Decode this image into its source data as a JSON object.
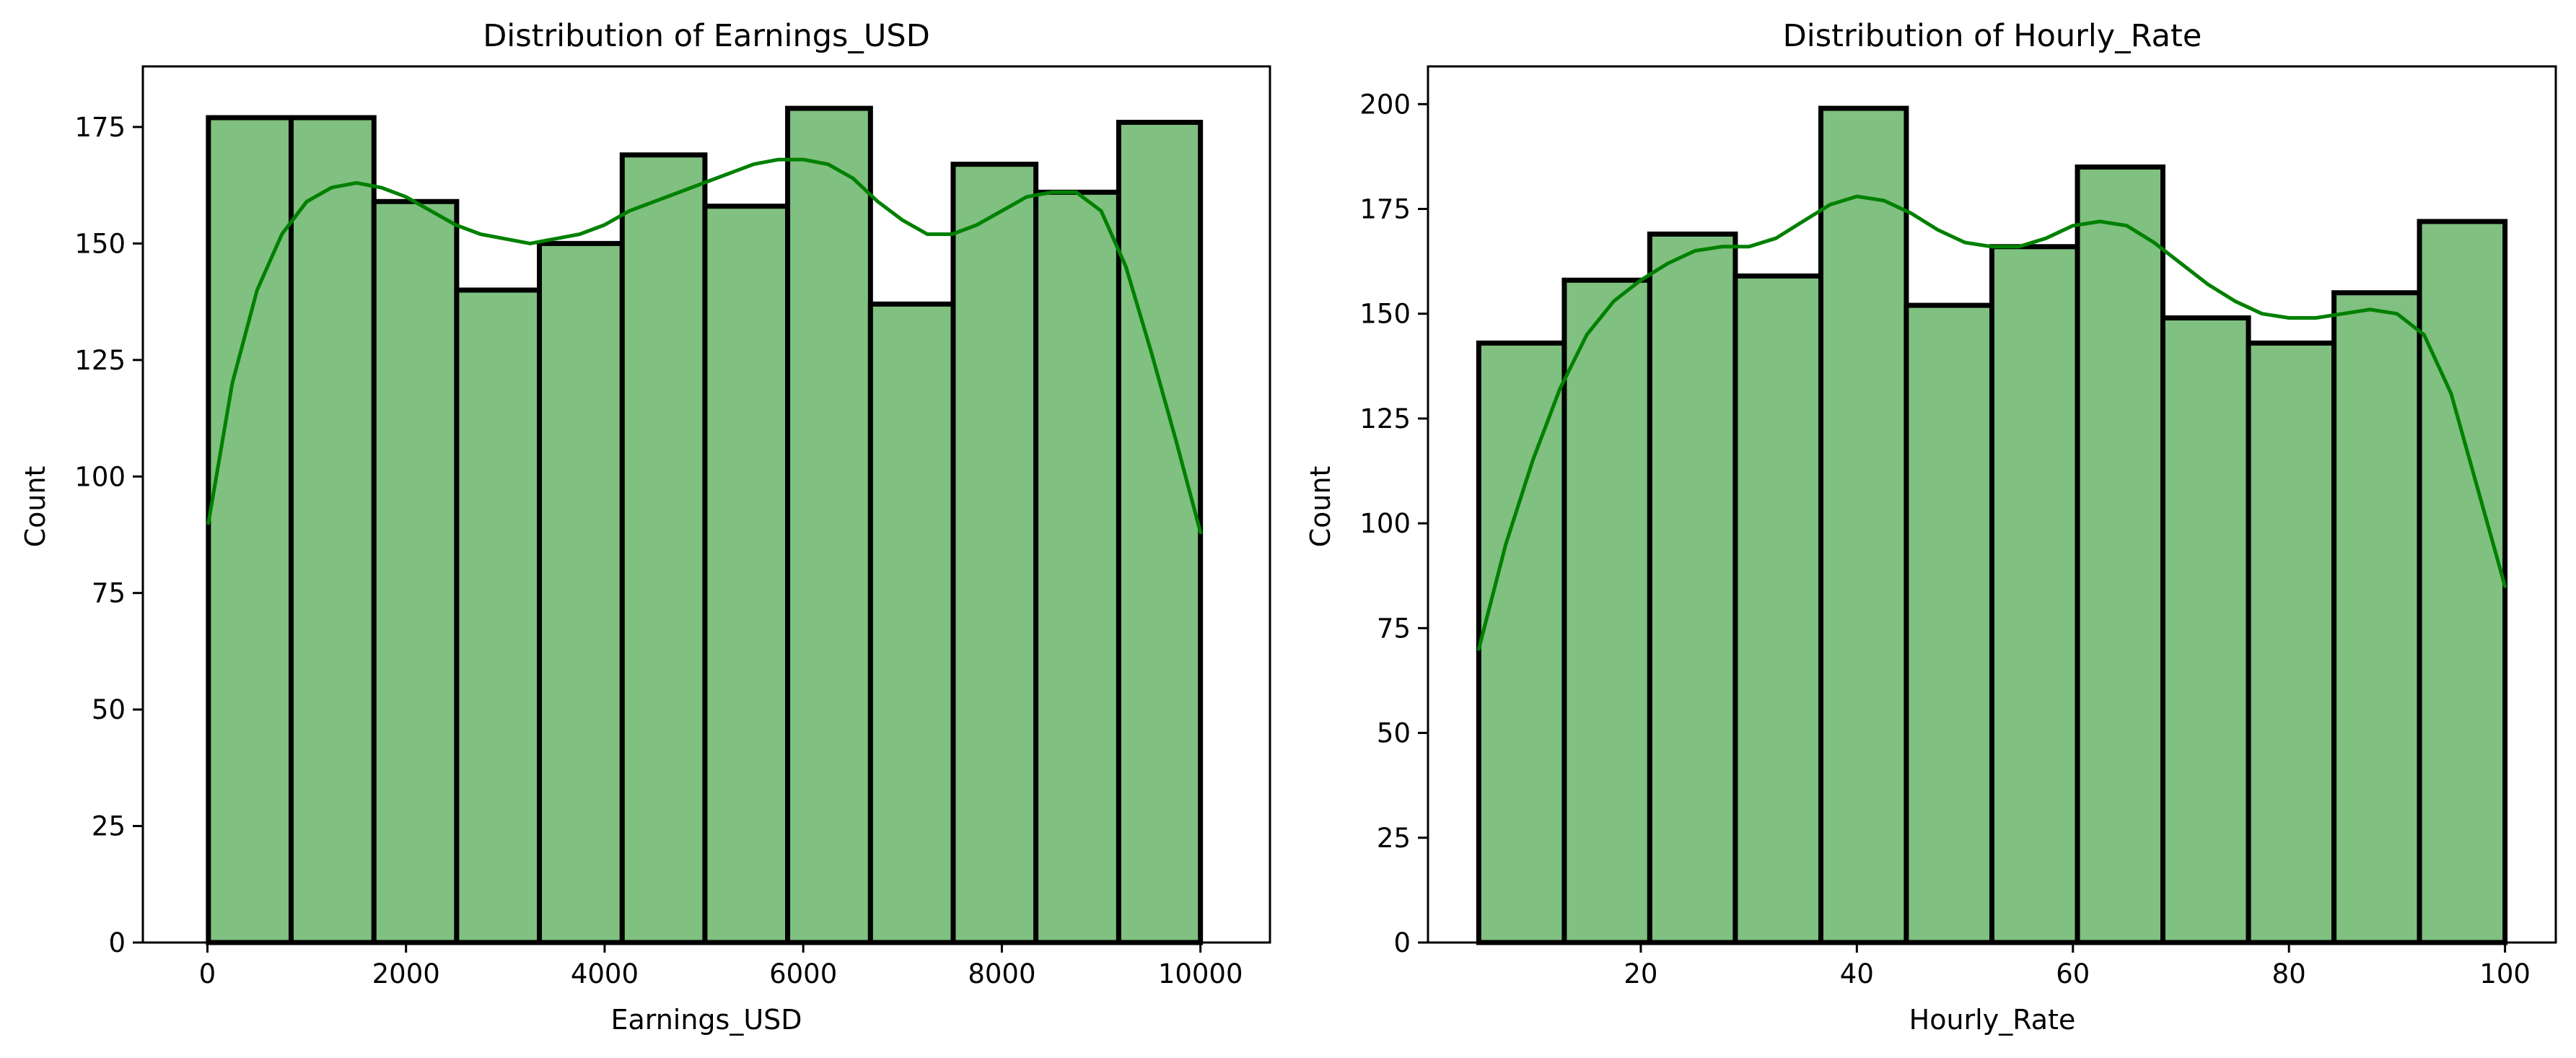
{
  "chart_data": [
    {
      "type": "bar",
      "title": "Distribution of Earnings_USD",
      "xlabel": "Earnings_USD",
      "ylabel": "Count",
      "xlim": [
        -650,
        10700
      ],
      "ylim": [
        0,
        188
      ],
      "xticks": [
        0,
        2000,
        4000,
        6000,
        8000,
        10000
      ],
      "yticks": [
        0,
        25,
        50,
        75,
        100,
        125,
        150,
        175
      ],
      "bin_edges": [
        10,
        843,
        1677,
        2510,
        3343,
        4177,
        5010,
        5843,
        6677,
        7510,
        8343,
        9177,
        10000
      ],
      "values": [
        177,
        177,
        159,
        140,
        150,
        169,
        158,
        179,
        137,
        167,
        161,
        176
      ],
      "kde": {
        "x": [
          10,
          250,
          500,
          750,
          1000,
          1250,
          1500,
          1750,
          2000,
          2250,
          2500,
          2750,
          3000,
          3250,
          3500,
          3750,
          4000,
          4250,
          4500,
          4750,
          5000,
          5250,
          5500,
          5750,
          6000,
          6250,
          6500,
          6750,
          7000,
          7250,
          7500,
          7750,
          8000,
          8250,
          8500,
          8750,
          9000,
          9250,
          9500,
          9750,
          10000
        ],
        "y": [
          90,
          120,
          140,
          152,
          159,
          162,
          163,
          162,
          160,
          157,
          154,
          152,
          151,
          150,
          151,
          152,
          154,
          157,
          159,
          161,
          163,
          165,
          167,
          168,
          168,
          167,
          164,
          159,
          155,
          152,
          152,
          154,
          157,
          160,
          161,
          161,
          157,
          145,
          127,
          108,
          88
        ]
      },
      "colors": {
        "bar": "#80c080",
        "edge": "#000000",
        "kde": "#008000"
      }
    },
    {
      "type": "bar",
      "title": "Distribution of Hourly_Rate",
      "xlabel": "Hourly_Rate",
      "ylabel": "Count",
      "xlim": [
        0.3,
        104.7
      ],
      "ylim": [
        0,
        209
      ],
      "xticks": [
        20,
        40,
        60,
        80,
        100
      ],
      "yticks": [
        0,
        25,
        50,
        75,
        100,
        125,
        150,
        175,
        200
      ],
      "bin_edges": [
        5,
        12.92,
        20.83,
        28.75,
        36.67,
        44.58,
        52.5,
        60.42,
        68.33,
        76.25,
        84.17,
        92.08,
        100
      ],
      "values": [
        143,
        158,
        169,
        159,
        199,
        152,
        166,
        185,
        149,
        143,
        155,
        172
      ],
      "kde": {
        "x": [
          5,
          7.5,
          10,
          12.5,
          15,
          17.5,
          20,
          22.5,
          25,
          27.5,
          30,
          32.5,
          35,
          37.5,
          40,
          42.5,
          45,
          47.5,
          50,
          52.5,
          55,
          57.5,
          60,
          62.5,
          65,
          67.5,
          70,
          72.5,
          75,
          77.5,
          80,
          82.5,
          85,
          87.5,
          90,
          92.5,
          95,
          97.5,
          100
        ],
        "y": [
          70,
          95,
          115,
          132,
          145,
          153,
          158,
          162,
          165,
          166,
          166,
          168,
          172,
          176,
          178,
          177,
          174,
          170,
          167,
          166,
          166,
          168,
          171,
          172,
          171,
          167,
          162,
          157,
          153,
          150,
          149,
          149,
          150,
          151,
          150,
          145,
          131,
          108,
          85
        ]
      },
      "colors": {
        "bar": "#80c080",
        "edge": "#000000",
        "kde": "#008000"
      }
    }
  ]
}
